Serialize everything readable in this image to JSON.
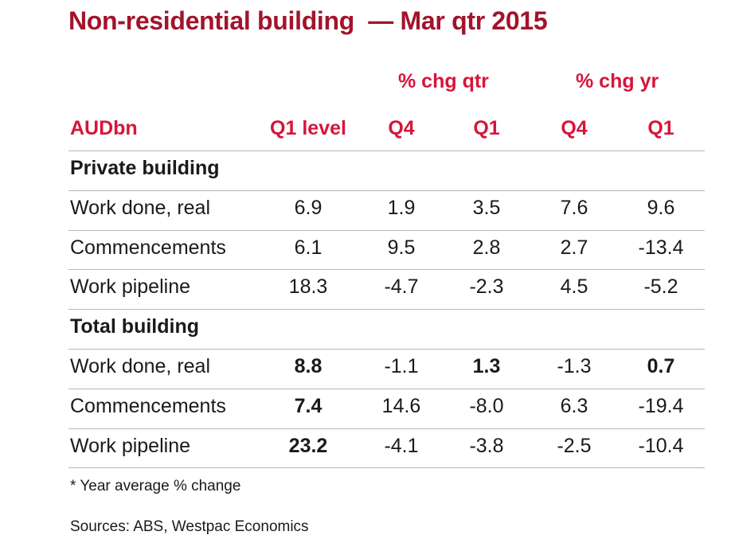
{
  "title": "Non-residential building  — Mar qtr 2015",
  "group_headers": {
    "qtr": "% chg qtr",
    "yr": "% chg yr"
  },
  "columns": {
    "label": "AUDbn",
    "level": "Q1 level",
    "qtr_q4": "Q4",
    "qtr_q1": "Q1",
    "yr_q4": "Q4",
    "yr_q1": "Q1"
  },
  "sections": [
    {
      "title": "Private building",
      "rows": [
        {
          "label": "Work done, real",
          "values": [
            "6.9",
            "1.9",
            "3.5",
            "7.6",
            "9.6"
          ],
          "bold": [
            false,
            false,
            false,
            false,
            false
          ]
        },
        {
          "label": "Commencements",
          "values": [
            "6.1",
            "9.5",
            "2.8",
            "2.7",
            "-13.4"
          ],
          "bold": [
            false,
            false,
            false,
            false,
            false
          ]
        },
        {
          "label": "Work pipeline",
          "values": [
            "18.3",
            "-4.7",
            "-2.3",
            "4.5",
            "-5.2"
          ],
          "bold": [
            false,
            false,
            false,
            false,
            false
          ]
        }
      ]
    },
    {
      "title": "Total building",
      "rows": [
        {
          "label": "Work done, real",
          "values": [
            "8.8",
            "-1.1",
            "1.3",
            "-1.3",
            "0.7"
          ],
          "bold": [
            true,
            false,
            true,
            false,
            true
          ]
        },
        {
          "label": "Commencements",
          "values": [
            "7.4",
            "14.6",
            "-8.0",
            "6.3",
            "-19.4"
          ],
          "bold": [
            true,
            false,
            false,
            false,
            false
          ]
        },
        {
          "label": "Work pipeline",
          "values": [
            "23.2",
            "-4.1",
            "-3.8",
            "-2.5",
            "-10.4"
          ],
          "bold": [
            true,
            false,
            false,
            false,
            false
          ]
        }
      ]
    }
  ],
  "footnote": "* Year average % change",
  "sources": "Sources: ABS, Westpac Economics",
  "colors": {
    "title": "#a3132b",
    "header": "#d7153a",
    "rule": "#b7b7b7"
  }
}
